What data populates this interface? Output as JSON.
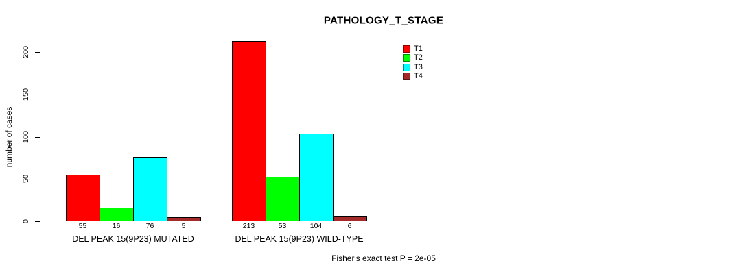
{
  "chart_data": {
    "type": "bar",
    "title": "PATHOLOGY_T_STAGE",
    "ylabel": "number of cases",
    "xlabel": "",
    "ylim": [
      0,
      200
    ],
    "yticks": [
      0,
      50,
      100,
      150,
      200
    ],
    "grid": false,
    "legend_position": "top-right",
    "categories": [
      "DEL PEAK 15(9P23) MUTATED",
      "DEL PEAK 15(9P23) WILD-TYPE"
    ],
    "series": [
      {
        "name": "T1",
        "color": "#FF0000",
        "values": [
          55,
          213
        ]
      },
      {
        "name": "T2",
        "color": "#00FF00",
        "values": [
          16,
          53
        ]
      },
      {
        "name": "T3",
        "color": "#00FFFF",
        "values": [
          76,
          104
        ]
      },
      {
        "name": "T4",
        "color": "#A52A2A",
        "values": [
          5,
          6
        ]
      }
    ],
    "annotation": "Fisher's exact test P = 2e-05",
    "axis_color": "#000000",
    "text_color": "#000000",
    "background_color": "#FFFFFF"
  }
}
